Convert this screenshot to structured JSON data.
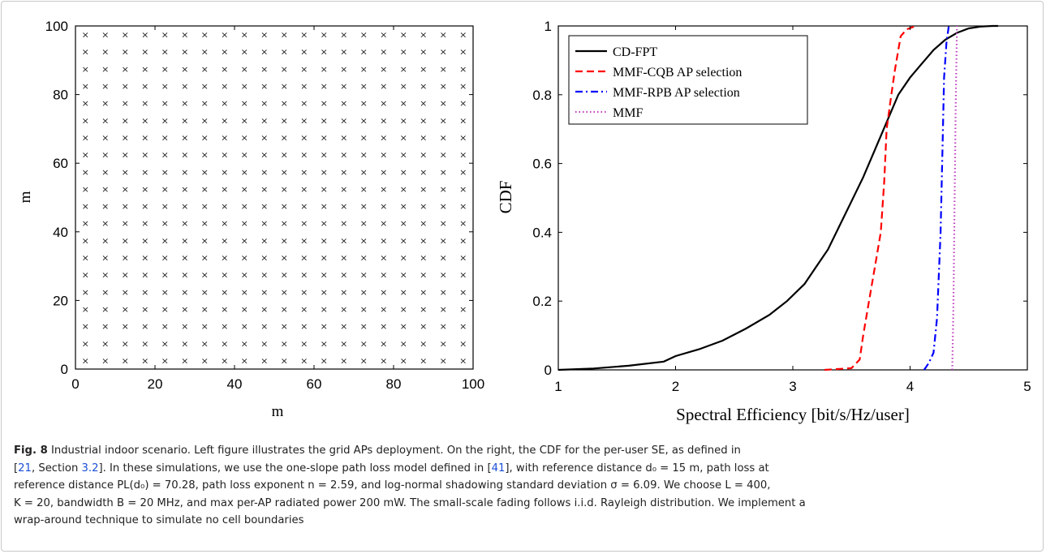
{
  "chart_data": [
    {
      "type": "scatter",
      "title": "",
      "xlabel": "m",
      "ylabel": "m",
      "xlim": [
        0,
        100
      ],
      "ylim": [
        0,
        100
      ],
      "xticks": [
        "0",
        "20",
        "40",
        "60",
        "80",
        "100"
      ],
      "yticks": [
        "0",
        "20",
        "40",
        "60",
        "80",
        "100"
      ],
      "grid": false,
      "marker": "×",
      "points": {
        "description_from_axes": "20 x 20 grid of access points, spacing 5 m, first at 2.5 m",
        "x": [
          2.5,
          7.5,
          12.5,
          17.5,
          22.5,
          27.5,
          32.5,
          37.5,
          42.5,
          47.5,
          52.5,
          57.5,
          62.5,
          67.5,
          72.5,
          77.5,
          82.5,
          87.5,
          92.5,
          97.5
        ],
        "y": [
          2.5,
          7.5,
          12.5,
          17.5,
          22.5,
          27.5,
          32.5,
          37.5,
          42.5,
          47.5,
          52.5,
          57.5,
          62.5,
          67.5,
          72.5,
          77.5,
          82.5,
          87.5,
          92.5,
          97.5
        ]
      }
    },
    {
      "type": "line",
      "title": "",
      "xlabel": "Spectral Efficiency [bit/s/Hz/user]",
      "ylabel": "CDF",
      "xlim": [
        1,
        5
      ],
      "ylim": [
        0,
        1
      ],
      "xticks": [
        "1",
        "2",
        "3",
        "4",
        "5"
      ],
      "yticks": [
        "0",
        "0.2",
        "0.4",
        "0.6",
        "0.8",
        "1"
      ],
      "grid": false,
      "legend_position": "top-left",
      "series": [
        {
          "name": "CD-FPT",
          "color": "#000000",
          "style": "solid",
          "x": [
            1.0,
            1.3,
            1.6,
            1.9,
            2.0,
            2.2,
            2.4,
            2.6,
            2.8,
            2.95,
            3.1,
            3.2,
            3.3,
            3.4,
            3.5,
            3.6,
            3.7,
            3.8,
            3.9,
            4.0,
            4.1,
            4.2,
            4.3,
            4.4,
            4.5,
            4.6,
            4.7,
            4.75
          ],
          "y": [
            0.0,
            0.004,
            0.012,
            0.024,
            0.04,
            0.06,
            0.085,
            0.12,
            0.16,
            0.2,
            0.25,
            0.3,
            0.35,
            0.42,
            0.49,
            0.56,
            0.64,
            0.72,
            0.8,
            0.85,
            0.89,
            0.93,
            0.96,
            0.98,
            0.993,
            0.998,
            1.0,
            1.0
          ]
        },
        {
          "name": "MMF-CQB AP selection",
          "color": "#ff0000",
          "style": "dashed",
          "x": [
            3.27,
            3.5,
            3.57,
            3.6,
            3.65,
            3.7,
            3.75,
            3.78,
            3.8,
            3.84,
            3.87,
            3.9,
            3.92,
            3.97,
            4.05
          ],
          "y": [
            0.0,
            0.005,
            0.03,
            0.1,
            0.2,
            0.3,
            0.4,
            0.55,
            0.7,
            0.8,
            0.87,
            0.93,
            0.97,
            0.99,
            1.0
          ]
        },
        {
          "name": "MMF-RPB AP selection",
          "color": "#0000ff",
          "style": "dashdot",
          "x": [
            4.12,
            4.16,
            4.2,
            4.23,
            4.26,
            4.28,
            4.29,
            4.31,
            4.33
          ],
          "y": [
            0.0,
            0.02,
            0.05,
            0.15,
            0.4,
            0.7,
            0.85,
            0.95,
            1.0
          ]
        },
        {
          "name": "MMF",
          "color": "#bf40bf",
          "style": "dotted",
          "x": [
            4.36,
            4.37,
            4.38,
            4.39,
            4.4
          ],
          "y": [
            0.0,
            0.2,
            0.5,
            0.8,
            1.0
          ]
        }
      ]
    }
  ],
  "caption": {
    "label": "Fig. 8",
    "line1": " Industrial indoor scenario. Left figure illustrates the grid APs deployment. On the right, the CDF for the per-user SE, as defined in",
    "line2_ref_open": "[",
    "line2_ref_num": "21",
    "line2_ref_mid": ", Section ",
    "line2_ref_sec": "3.2",
    "line2_rest": "]. In these simulations, we use the one-slope path loss model defined in [",
    "line2_ref2": "41",
    "line2_end": "], with reference distance d₀ = 15 m, path loss at",
    "line3": "reference distance PL(d₀) = 70.28, path loss exponent n = 2.59, and log-normal shadowing standard deviation σ = 6.09. We choose L = 400,",
    "line4": "K = 20, bandwidth B = 20 MHz, and max per-AP radiated power 200 mW. The small-scale fading follows i.i.d. Rayleigh distribution. We implement a",
    "line5": "wrap-around technique to simulate no cell boundaries"
  }
}
